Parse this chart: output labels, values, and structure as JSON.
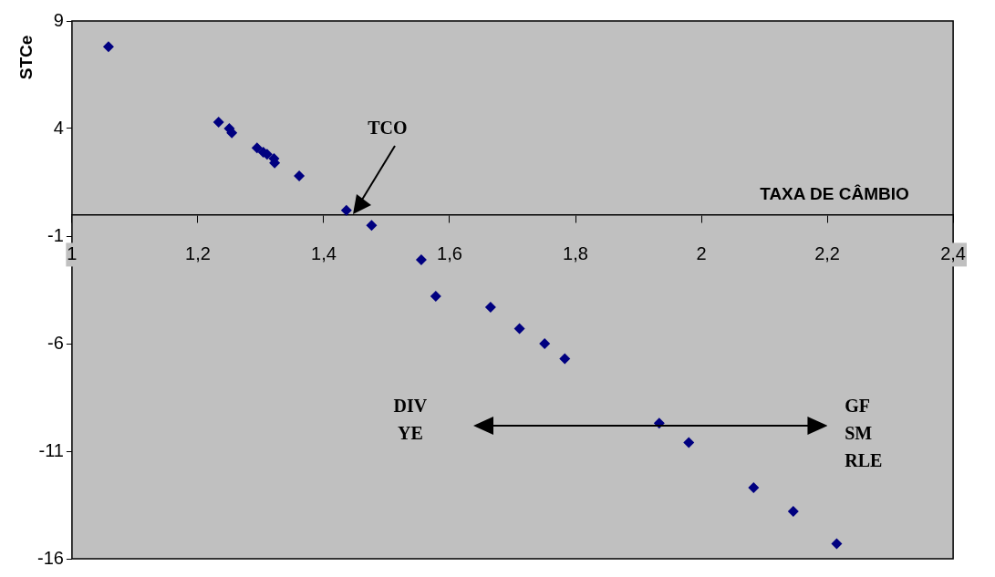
{
  "chart_data": {
    "type": "scatter",
    "xlabel": "TAXA DE CÂMBIO",
    "ylabel": "STCe",
    "xlim": [
      1,
      2.4
    ],
    "ylim": [
      -16,
      9
    ],
    "xticks": [
      {
        "value": 1,
        "label": "1"
      },
      {
        "value": 1.2,
        "label": "1,2"
      },
      {
        "value": 1.4,
        "label": "1,4"
      },
      {
        "value": 1.6,
        "label": "1,6"
      },
      {
        "value": 1.8,
        "label": "1,8"
      },
      {
        "value": 2,
        "label": "2"
      },
      {
        "value": 2.2,
        "label": "2,2"
      },
      {
        "value": 2.4,
        "label": "2,4"
      }
    ],
    "yticks": [
      9,
      4,
      -1,
      -6,
      -11,
      -16
    ],
    "grid": false,
    "legend": false,
    "marker": "diamond",
    "series": [
      {
        "color": "#000080",
        "x": [
          1.058,
          1.233,
          1.25,
          1.254,
          1.294,
          1.304,
          1.31,
          1.321,
          1.322,
          1.361,
          1.436,
          1.476,
          1.555,
          1.578,
          1.665,
          1.711,
          1.751,
          1.783,
          1.933,
          1.98,
          2.083,
          2.146,
          2.215
        ],
        "values": [
          7.8,
          4.3,
          4.0,
          3.8,
          3.1,
          2.9,
          2.8,
          2.6,
          2.4,
          1.8,
          0.2,
          -0.5,
          -2.1,
          -3.8,
          -4.3,
          -5.3,
          -6.0,
          -6.7,
          -9.7,
          -10.6,
          -12.7,
          -13.8,
          -15.3
        ]
      }
    ],
    "annotations": [
      "TCO",
      "DIV\nYE",
      "GF\nSM\nRLE"
    ]
  }
}
